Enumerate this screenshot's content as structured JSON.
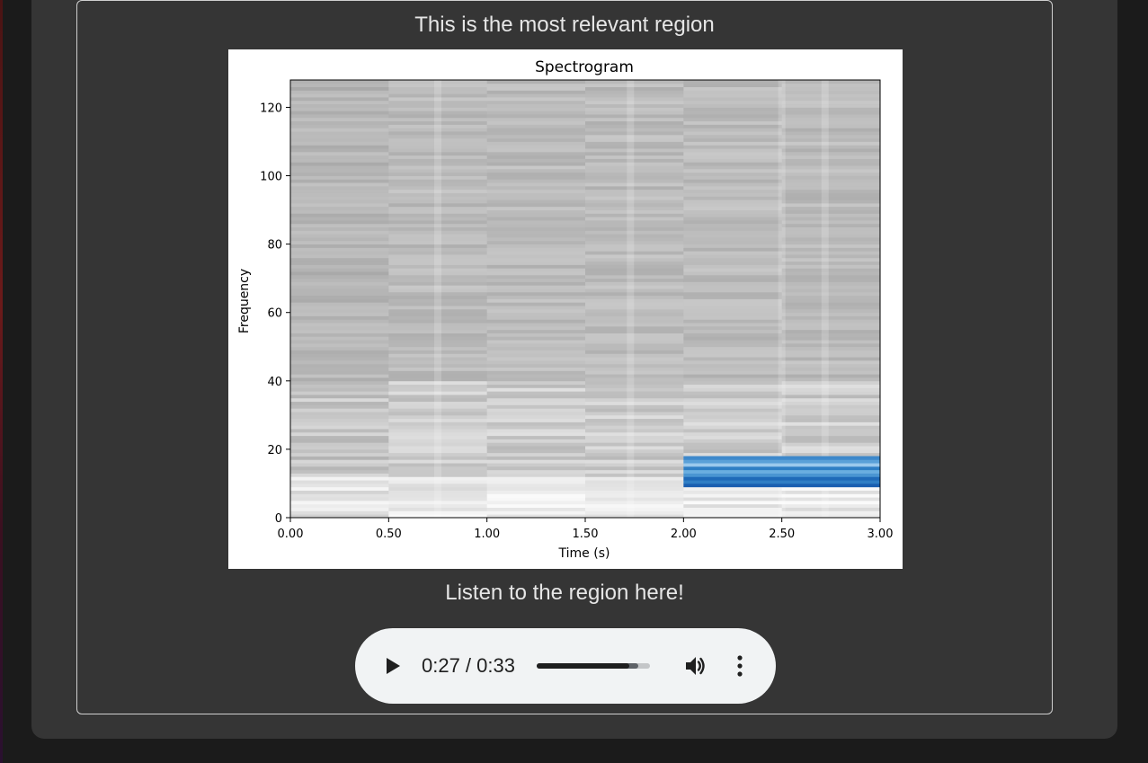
{
  "section": {
    "top_heading": "This is the most relevant region",
    "listen_heading": "Listen to the region here!"
  },
  "chart_data": {
    "type": "heatmap",
    "title": "Spectrogram",
    "xlabel": "Time (s)",
    "ylabel": "Frequency",
    "xlim": [
      0,
      3
    ],
    "ylim": [
      0,
      128
    ],
    "x_ticks": [
      0,
      0.5,
      1,
      1.5,
      2,
      2.5,
      3
    ],
    "x_tick_labels": [
      "0.00",
      "0.50",
      "1.00",
      "1.50",
      "2.00",
      "2.50",
      "3.00"
    ],
    "y_ticks": [
      0,
      20,
      40,
      60,
      80,
      100,
      120
    ],
    "y_tick_labels": [
      "0",
      "20",
      "40",
      "60",
      "80",
      "100",
      "120"
    ],
    "colormap": "grayscale",
    "highlight": {
      "x_range": [
        2.0,
        3.0
      ],
      "y_range": [
        9,
        18
      ],
      "color": "#2f7ec4"
    },
    "grid": false
  },
  "player": {
    "current_time": "0:27",
    "duration": "0:33",
    "time_display": "0:27 / 0:33",
    "progress_fraction": 0.818,
    "buffered_fraction": 0.9,
    "play_icon": "play-icon",
    "volume_icon": "volume-icon",
    "more_icon": "more-vertical-icon"
  },
  "colors": {
    "page_background": "#1b1b1b",
    "panel_background": "#353535",
    "heading_text": "#e6e6e6",
    "player_background": "#f1f3f4",
    "highlight": "#2f7ec4"
  }
}
